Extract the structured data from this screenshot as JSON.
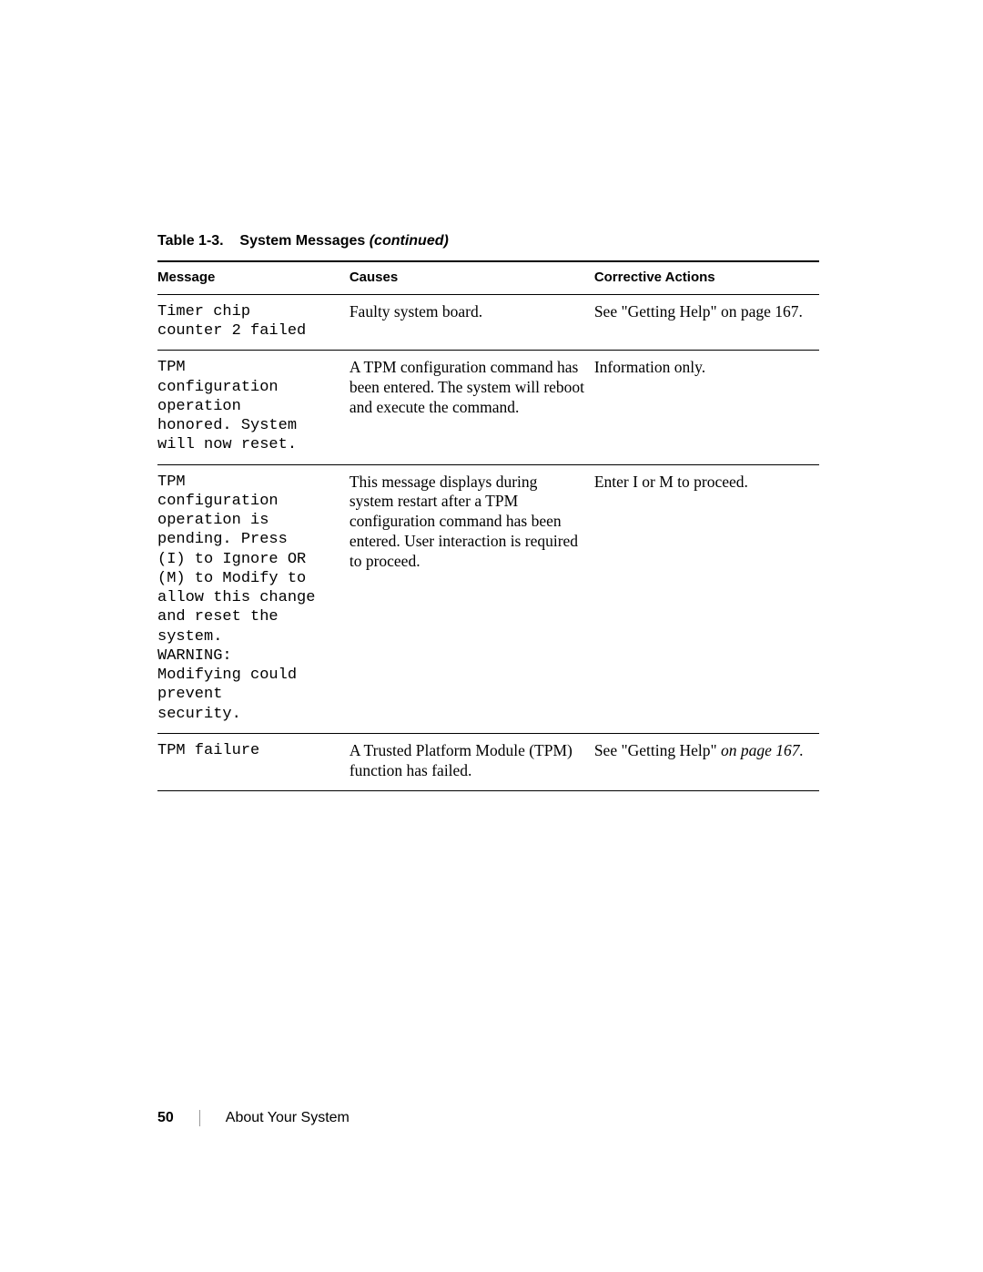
{
  "caption": {
    "label": "Table 1-3.",
    "title": "System Messages",
    "suffix": "(continued)"
  },
  "columns": {
    "message": "Message",
    "causes": "Causes",
    "actions": "Corrective Actions"
  },
  "rows": [
    {
      "message": "Timer chip\ncounter 2 failed",
      "cause": "Faulty system board.",
      "action_prefix": "See \"Getting Help\" on page 167.",
      "action_italic": ""
    },
    {
      "message": "TPM\nconfiguration\noperation\nhonored. System\nwill now reset.",
      "cause": "A TPM configuration command has been entered. The system will reboot and execute the command.",
      "action_prefix": "Information only.",
      "action_italic": ""
    },
    {
      "message": "TPM\nconfiguration\noperation is\npending. Press\n(I) to Ignore OR\n(M) to Modify to\nallow this change\nand reset the\nsystem.\nWARNING:\nModifying could\nprevent\nsecurity.",
      "cause": "This message displays during system restart after a TPM configuration command has been entered. User interaction is required to proceed.",
      "action_prefix": "Enter I or M to proceed.",
      "action_italic": ""
    },
    {
      "message": "TPM failure",
      "cause": "A Trusted Platform Module (TPM) function has failed.",
      "action_prefix": "See \"Getting Help\" ",
      "action_italic": "on page 167."
    }
  ],
  "footer": {
    "page_number": "50",
    "section": "About Your System"
  },
  "col_widths": {
    "c1": "29%",
    "c2": "37%",
    "c3": "34%"
  }
}
